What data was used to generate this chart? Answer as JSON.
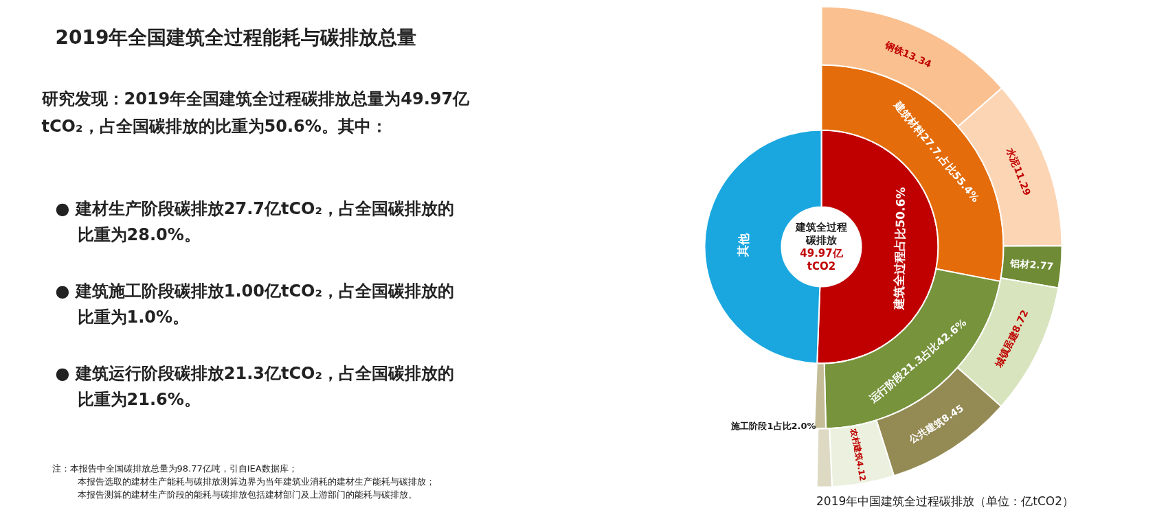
{
  "chart_data": {
    "type": "donut",
    "title": "2019年全国建筑全过程能耗与碳排放总量",
    "series": [
      {
        "values": [
          49.97,
          48.8
        ],
        "colors": [
          "#c00000",
          "#1aa7e0"
        ],
        "value_labels": [
          "建筑全过程占比50.6%",
          "其他"
        ]
      },
      {
        "values": [
          27.7,
          21.3,
          1.0
        ],
        "colors": [
          "#e46c0a",
          "#77933c",
          "#c4bd97"
        ],
        "value_labels": [
          "建筑材料27.7,占比55.4%",
          "运行阶段21.3占比42.6%",
          "施工阶段1占比2.0%"
        ]
      },
      {
        "values": [
          13.34,
          11.29,
          2.77,
          8.72,
          8.45,
          4.12,
          1.0
        ],
        "colors": [
          "#fac090",
          "#fcd5b5",
          "#6f8b35",
          "#d7e4bd",
          "#948a54",
          "#ebf1de",
          "#ddd9c3"
        ],
        "value_labels": [
          "钢铁13.34",
          "水泥11.29",
          "铝材2.77",
          "城镇居建8.72",
          "公共建筑8.45",
          "农村建筑4.12",
          null
        ]
      }
    ],
    "annotations": [
      "研究发现：2019年全国建筑全过程碳排放总量为49.97亿",
      "tCO₂，占全国碳排放的比重为50.6%。其中：",
      "●  建材生产阶段碳排放27.7亿tCO₂，占全国碳排放的",
      "比重为28.0%。",
      "●  建筑施工阶段碳排放1.00亿tCO₂，占全国碳排放的",
      "比重为1.0%。",
      "●  建筑运行阶段碳排放21.3亿tCO₂，占全国碳排放的",
      "比重为21.6%。",
      "注：本报告中全国碳排放总量为98.77亿吨，引自IEA数据库；",
      "本报告选取的建材生产能耗与碳排放测算边界为当年建筑业消耗的建材生产能耗与碳排放；",
      "本报告测算的建材生产阶段的能耗与碳排放包括建材部门及上游部门的能耗与碳排放。",
      "建筑全过程",
      "碳排放",
      "49.97亿",
      "tCO2",
      "2019年中国建筑全过程碳排放（单位：亿tCO2）"
    ]
  }
}
